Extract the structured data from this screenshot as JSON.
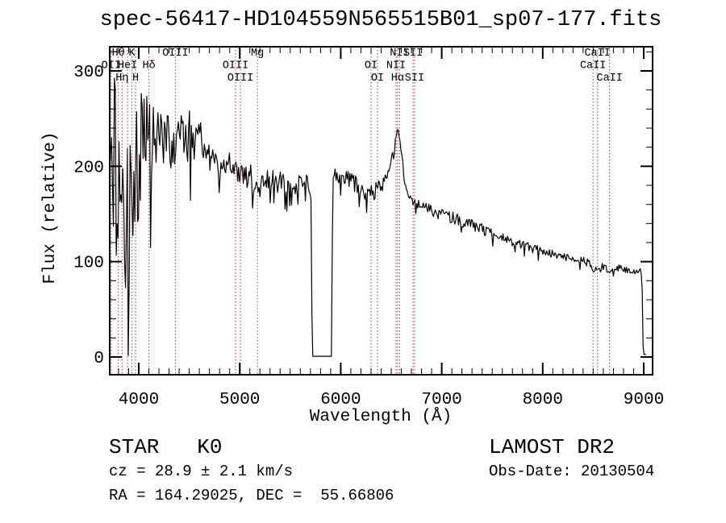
{
  "title": "spec-56417-HD104559N565515B01_sp07-177.fits",
  "axes": {
    "xlabel": "Wavelength (Å)",
    "ylabel": "Flux (relative)"
  },
  "annotations": {
    "classification": "STAR   K0",
    "cz": "cz = 28.9 ± 2.1 km/s",
    "coordinates": "RA = 164.29025, DEC =  55.66806",
    "survey": "LAMOST DR2",
    "obs_date": "Obs-Date: 20130504"
  },
  "colors": {
    "background": "#ffffff",
    "spectrum": "#000000",
    "line_marker": "#994040"
  },
  "chart_data": {
    "type": "line",
    "title": "spec-56417-HD104559N565515B01_sp07-177.fits",
    "xlabel": "Wavelength (Å)",
    "ylabel": "Flux (relative)",
    "x_range": [
      3712,
      9088
    ],
    "y_range": [
      -18,
      325
    ],
    "x_ticks": [
      4000,
      5000,
      6000,
      7000,
      8000,
      9000
    ],
    "y_ticks": [
      0,
      100,
      200,
      300
    ],
    "x_minor_step": 100,
    "y_minor_step": 20,
    "grid": false,
    "legend": "none",
    "gap": [
      5716,
      5913
    ],
    "spectral_lines": [
      {
        "label": "OII",
        "wavelength": 3727,
        "row": 2
      },
      {
        "label": "Hθ",
        "wavelength": 3798,
        "row": 1
      },
      {
        "label": "Hη",
        "wavelength": 3835,
        "row": 3
      },
      {
        "label": "HeI",
        "wavelength": 3889,
        "row": 2
      },
      {
        "label": "K",
        "wavelength": 3933,
        "row": 1
      },
      {
        "label": "H",
        "wavelength": 3968,
        "row": 3
      },
      {
        "label": "Hδ",
        "wavelength": 4101,
        "row": 2
      },
      {
        "label": "OIII",
        "wavelength": 4363,
        "row": 1
      },
      {
        "label": "OIII",
        "wavelength": 4959,
        "row": 2
      },
      {
        "label": "OIII",
        "wavelength": 5007,
        "row": 3
      },
      {
        "label": "Mg",
        "wavelength": 5175,
        "row": 1
      },
      {
        "label": "OI",
        "wavelength": 6300,
        "row": 2
      },
      {
        "label": "OI",
        "wavelength": 6364,
        "row": 3
      },
      {
        "label": "NII",
        "wavelength": 6548,
        "row": 2
      },
      {
        "label": "Hα",
        "wavelength": 6563,
        "row": 3
      },
      {
        "label": "NII",
        "wavelength": 6583,
        "row": 1
      },
      {
        "label": "SII",
        "wavelength": 6716,
        "row": 1
      },
      {
        "label": "SII",
        "wavelength": 6731,
        "row": 3
      },
      {
        "label": "CaII",
        "wavelength": 8498,
        "row": 2
      },
      {
        "label": "CaII",
        "wavelength": 8542,
        "row": 1
      },
      {
        "label": "CaII",
        "wavelength": 8662,
        "row": 3
      }
    ],
    "spectrum_anchors": [
      [
        3712,
        150,
        300
      ],
      [
        3725,
        160,
        290
      ],
      [
        3745,
        165,
        260
      ],
      [
        3775,
        175,
        240
      ],
      [
        3805,
        185,
        230
      ],
      [
        3835,
        170,
        220
      ],
      [
        3865,
        160,
        230
      ],
      [
        3895,
        150,
        240
      ],
      [
        3925,
        145,
        240
      ],
      [
        3955,
        165,
        230
      ],
      [
        3985,
        195,
        170
      ],
      [
        4015,
        215,
        130
      ],
      [
        4045,
        228,
        100
      ],
      [
        4075,
        228,
        110
      ],
      [
        4105,
        232,
        110
      ],
      [
        4140,
        236,
        75
      ],
      [
        4180,
        234,
        60
      ],
      [
        4220,
        232,
        58
      ],
      [
        4260,
        230,
        60
      ],
      [
        4300,
        226,
        65
      ],
      [
        4340,
        229,
        58
      ],
      [
        4380,
        232,
        52
      ],
      [
        4420,
        233,
        50
      ],
      [
        4460,
        231,
        52
      ],
      [
        4500,
        232,
        55
      ],
      [
        4540,
        229,
        52
      ],
      [
        4580,
        228,
        48
      ],
      [
        4620,
        226,
        45
      ],
      [
        4660,
        221,
        45
      ],
      [
        4700,
        217,
        42
      ],
      [
        4740,
        212,
        42
      ],
      [
        4780,
        209,
        40
      ],
      [
        4820,
        207,
        38
      ],
      [
        4861,
        196,
        34
      ],
      [
        4900,
        202,
        30
      ],
      [
        4950,
        198,
        30
      ],
      [
        5000,
        194,
        29
      ],
      [
        5050,
        191,
        28
      ],
      [
        5100,
        189,
        28
      ],
      [
        5140,
        184,
        26
      ],
      [
        5175,
        171,
        26
      ],
      [
        5210,
        183,
        25
      ],
      [
        5260,
        186,
        24
      ],
      [
        5320,
        185,
        24
      ],
      [
        5380,
        184,
        24
      ],
      [
        5440,
        182,
        23
      ],
      [
        5500,
        181,
        22
      ],
      [
        5560,
        181,
        21
      ],
      [
        5620,
        182,
        20
      ],
      [
        5670,
        184,
        18
      ],
      [
        5700,
        176,
        14
      ],
      [
        5710,
        150,
        8
      ],
      [
        5714,
        60,
        0
      ],
      [
        5717,
        0.8,
        0
      ],
      [
        5913,
        0.8,
        0
      ],
      [
        5916,
        110,
        0
      ],
      [
        5921,
        192,
        12
      ],
      [
        5960,
        190,
        15
      ],
      [
        6020,
        188,
        17
      ],
      [
        6080,
        185,
        19
      ],
      [
        6140,
        181,
        20
      ],
      [
        6200,
        177,
        20
      ],
      [
        6260,
        173,
        19
      ],
      [
        6320,
        173,
        18
      ],
      [
        6380,
        178,
        17
      ],
      [
        6440,
        185,
        16
      ],
      [
        6490,
        199,
        16
      ],
      [
        6530,
        217,
        12
      ],
      [
        6555,
        233,
        7
      ],
      [
        6565,
        238,
        5
      ],
      [
        6585,
        229,
        7
      ],
      [
        6605,
        210,
        9
      ],
      [
        6630,
        188,
        10
      ],
      [
        6660,
        172,
        11
      ],
      [
        6700,
        164,
        12
      ],
      [
        6760,
        160,
        12
      ],
      [
        6840,
        157,
        12
      ],
      [
        6930,
        152,
        12
      ],
      [
        7020,
        149,
        12
      ],
      [
        7110,
        146,
        12
      ],
      [
        7200,
        142,
        12
      ],
      [
        7290,
        139,
        12
      ],
      [
        7380,
        135,
        11
      ],
      [
        7470,
        131,
        11
      ],
      [
        7560,
        127,
        11
      ],
      [
        7650,
        123,
        11
      ],
      [
        7740,
        119,
        10
      ],
      [
        7830,
        116,
        10
      ],
      [
        7920,
        113,
        10
      ],
      [
        8010,
        111,
        9
      ],
      [
        8100,
        108,
        9
      ],
      [
        8190,
        106,
        9
      ],
      [
        8280,
        104,
        9
      ],
      [
        8370,
        102,
        9
      ],
      [
        8450,
        99,
        9
      ],
      [
        8495,
        91,
        7
      ],
      [
        8530,
        93,
        8
      ],
      [
        8545,
        89,
        7
      ],
      [
        8590,
        95,
        8
      ],
      [
        8640,
        92,
        7
      ],
      [
        8665,
        88,
        7
      ],
      [
        8710,
        94,
        8
      ],
      [
        8780,
        93,
        8
      ],
      [
        8850,
        91,
        8
      ],
      [
        8920,
        90,
        8
      ],
      [
        8970,
        89,
        8
      ],
      [
        8984,
        80,
        5
      ],
      [
        8990,
        30,
        3
      ],
      [
        8996,
        3,
        1
      ],
      [
        9030,
        2,
        1
      ]
    ]
  }
}
